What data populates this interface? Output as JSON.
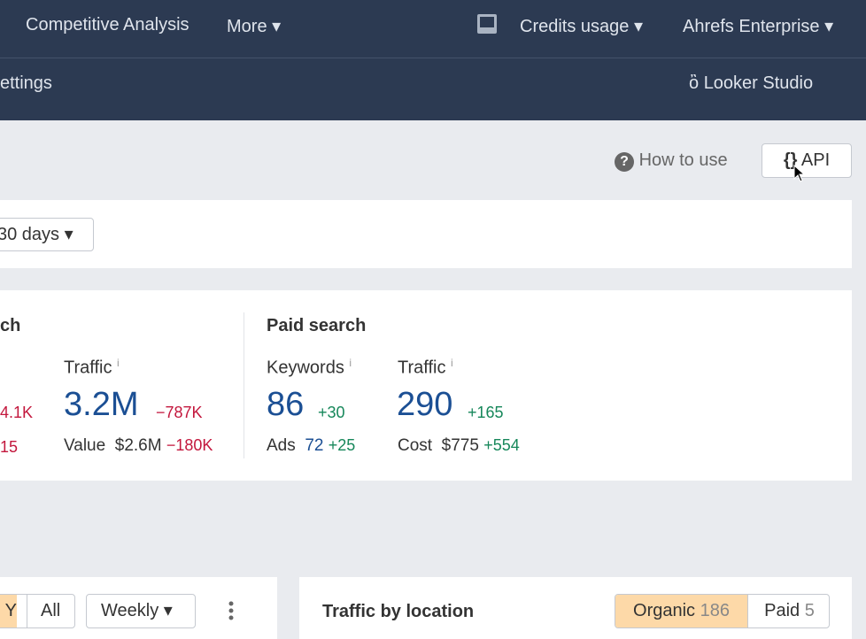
{
  "nav": {
    "items": [
      "Competitive Analysis",
      "More"
    ],
    "right": [
      "Credits usage",
      "Ahrefs Enterprise"
    ]
  },
  "subnav": {
    "left": "ettings",
    "right": "Looker Studio"
  },
  "toolbar": {
    "help": "How to use",
    "api": "API"
  },
  "filter": {
    "period": "30 days"
  },
  "organic": {
    "heading": "ch",
    "left_delta": "4.1K",
    "left_sub_delta": "15",
    "traffic": {
      "label": "Traffic",
      "info": "i",
      "value": "3.2M",
      "delta": "−787K",
      "sub_label": "Value",
      "sub_value": "$2.6M",
      "sub_delta": "−180K"
    }
  },
  "paid": {
    "heading": "Paid search",
    "keywords": {
      "label": "Keywords",
      "info": "i",
      "value": "86",
      "delta": "+30",
      "sub_label": "Ads",
      "sub_value": "72",
      "sub_delta": "+25"
    },
    "traffic": {
      "label": "Traffic",
      "info": "i",
      "value": "290",
      "delta": "+165",
      "sub_label": "Cost",
      "sub_value": "$775",
      "sub_delta": "+554"
    }
  },
  "left_panel": {
    "range_options": [
      "Y",
      "All"
    ],
    "interval": "Weekly"
  },
  "location_panel": {
    "title": "Traffic by location",
    "tabs": [
      {
        "label": "Organic",
        "count": "186"
      },
      {
        "label": "Paid",
        "count": "5"
      }
    ]
  }
}
